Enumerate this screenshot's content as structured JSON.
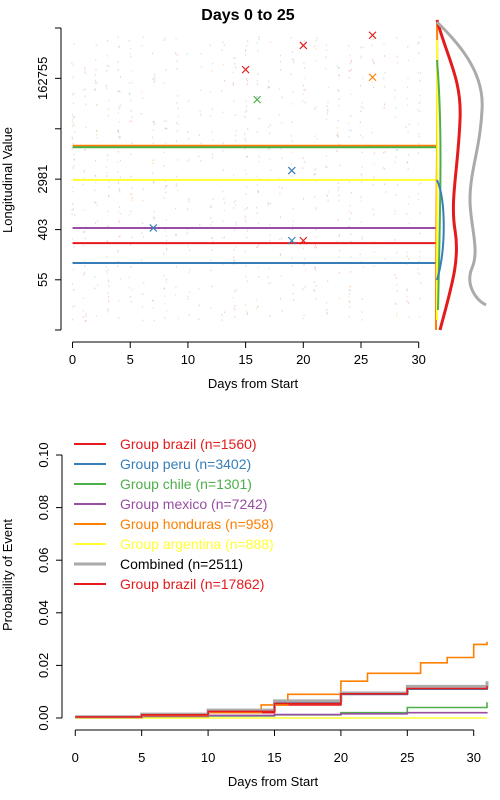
{
  "chart_data": [
    {
      "type": "line",
      "title": "Days 0 to 25",
      "xlabel": "Days from Start",
      "ylabel": "Longitudinal Value",
      "x_ticks": [
        0,
        5,
        10,
        15,
        20,
        25,
        30
      ],
      "xlim": [
        -1,
        31.5
      ],
      "y_scale": "log",
      "y_ticks": [
        55,
        403,
        2981,
        162755
      ],
      "y_extra_ticks": [
        7.5,
        22000,
        1200000
      ],
      "ylim": [
        7.5,
        1200000
      ],
      "colors": {
        "brazil": "#e41a1c",
        "peru": "#377eb8",
        "chile": "#4daf4a",
        "mexico": "#984ea3",
        "honduras": "#ff7f00",
        "argentina": "#ffff33",
        "combined": "#aaaaaa"
      },
      "horizontal_lines": [
        {
          "group": "honduras",
          "y": 11200
        },
        {
          "group": "chile",
          "y": 10600
        },
        {
          "group": "argentina",
          "y": 2900
        },
        {
          "group": "mexico",
          "y": 430
        },
        {
          "group": "brazil",
          "y": 236
        },
        {
          "group": "peru",
          "y": 107
        }
      ],
      "markers": [
        {
          "group": "brazil",
          "x": 26,
          "y": 900000
        },
        {
          "group": "brazil",
          "x": 20,
          "y": 600000
        },
        {
          "group": "brazil",
          "x": 15,
          "y": 230000
        },
        {
          "group": "honduras",
          "x": 26,
          "y": 170000
        },
        {
          "group": "chile",
          "x": 16,
          "y": 70000
        },
        {
          "group": "peru",
          "x": 19,
          "y": 4200
        },
        {
          "group": "peru",
          "x": 7,
          "y": 430
        },
        {
          "group": "peru",
          "x": 19,
          "y": 260
        },
        {
          "group": "brazil",
          "x": 20,
          "y": 260
        }
      ],
      "grid": false
    },
    {
      "type": "line",
      "step": true,
      "xlabel": "Days from Start",
      "ylabel": "Probability of Event",
      "x_ticks": [
        0,
        5,
        10,
        15,
        20,
        25,
        30
      ],
      "xlim": [
        -1,
        31
      ],
      "y_ticks": [
        "0.00",
        "0.02",
        "0.04",
        "0.06",
        "0.08",
        "0.10"
      ],
      "ylim": [
        0,
        0.1
      ],
      "legend_position": "top-left",
      "grid": false,
      "series": [
        {
          "name": "Group brazil (n=1560)",
          "color": "#e41a1c",
          "x": [
            0,
            5,
            10,
            15,
            20,
            25,
            31
          ],
          "values": [
            0.0005,
            0.001,
            0.002,
            0.005,
            0.009,
            0.011,
            0.012
          ]
        },
        {
          "name": "Group peru (n=3402)",
          "color": "#377eb8",
          "x": [
            0,
            5,
            10,
            15,
            20,
            25,
            31
          ],
          "values": [
            0.0005,
            0.0015,
            0.003,
            0.006,
            0.009,
            0.011,
            0.0115
          ]
        },
        {
          "name": "Group chile (n=1301)",
          "color": "#4daf4a",
          "x": [
            0,
            5,
            10,
            15,
            20,
            25,
            31
          ],
          "values": [
            0,
            0.0003,
            0.0008,
            0.0012,
            0.002,
            0.004,
            0.006
          ]
        },
        {
          "name": "Group mexico (n=7242)",
          "color": "#984ea3",
          "x": [
            0,
            5,
            10,
            15,
            20,
            25,
            31
          ],
          "values": [
            0.0003,
            0.0006,
            0.001,
            0.0013,
            0.0016,
            0.002,
            0.0022
          ]
        },
        {
          "name": "Group honduras (n=958)",
          "color": "#ff7f00",
          "x": [
            0,
            5,
            10,
            14,
            16,
            20,
            22,
            26,
            28,
            30,
            31
          ],
          "values": [
            0,
            0.001,
            0.002,
            0.005,
            0.009,
            0.014,
            0.017,
            0.021,
            0.023,
            0.028,
            0.029
          ]
        },
        {
          "name": "Group argentina (n=888)",
          "color": "#ffff33",
          "x": [
            0,
            31
          ],
          "values": [
            0,
            0
          ]
        },
        {
          "name": "Combined (n=2511)",
          "color": "#aaaaaa",
          "x": [
            0,
            5,
            10,
            15,
            20,
            25,
            31
          ],
          "values": [
            0.0005,
            0.0015,
            0.003,
            0.0065,
            0.0095,
            0.012,
            0.014
          ]
        },
        {
          "name": "Group brazil (n=17862)",
          "color": "#e41a1c",
          "x": [
            0,
            5,
            10,
            15,
            20,
            25,
            31
          ],
          "values": [
            0.0004,
            0.0012,
            0.0025,
            0.0055,
            0.0092,
            0.0112,
            0.0122
          ]
        }
      ]
    }
  ]
}
